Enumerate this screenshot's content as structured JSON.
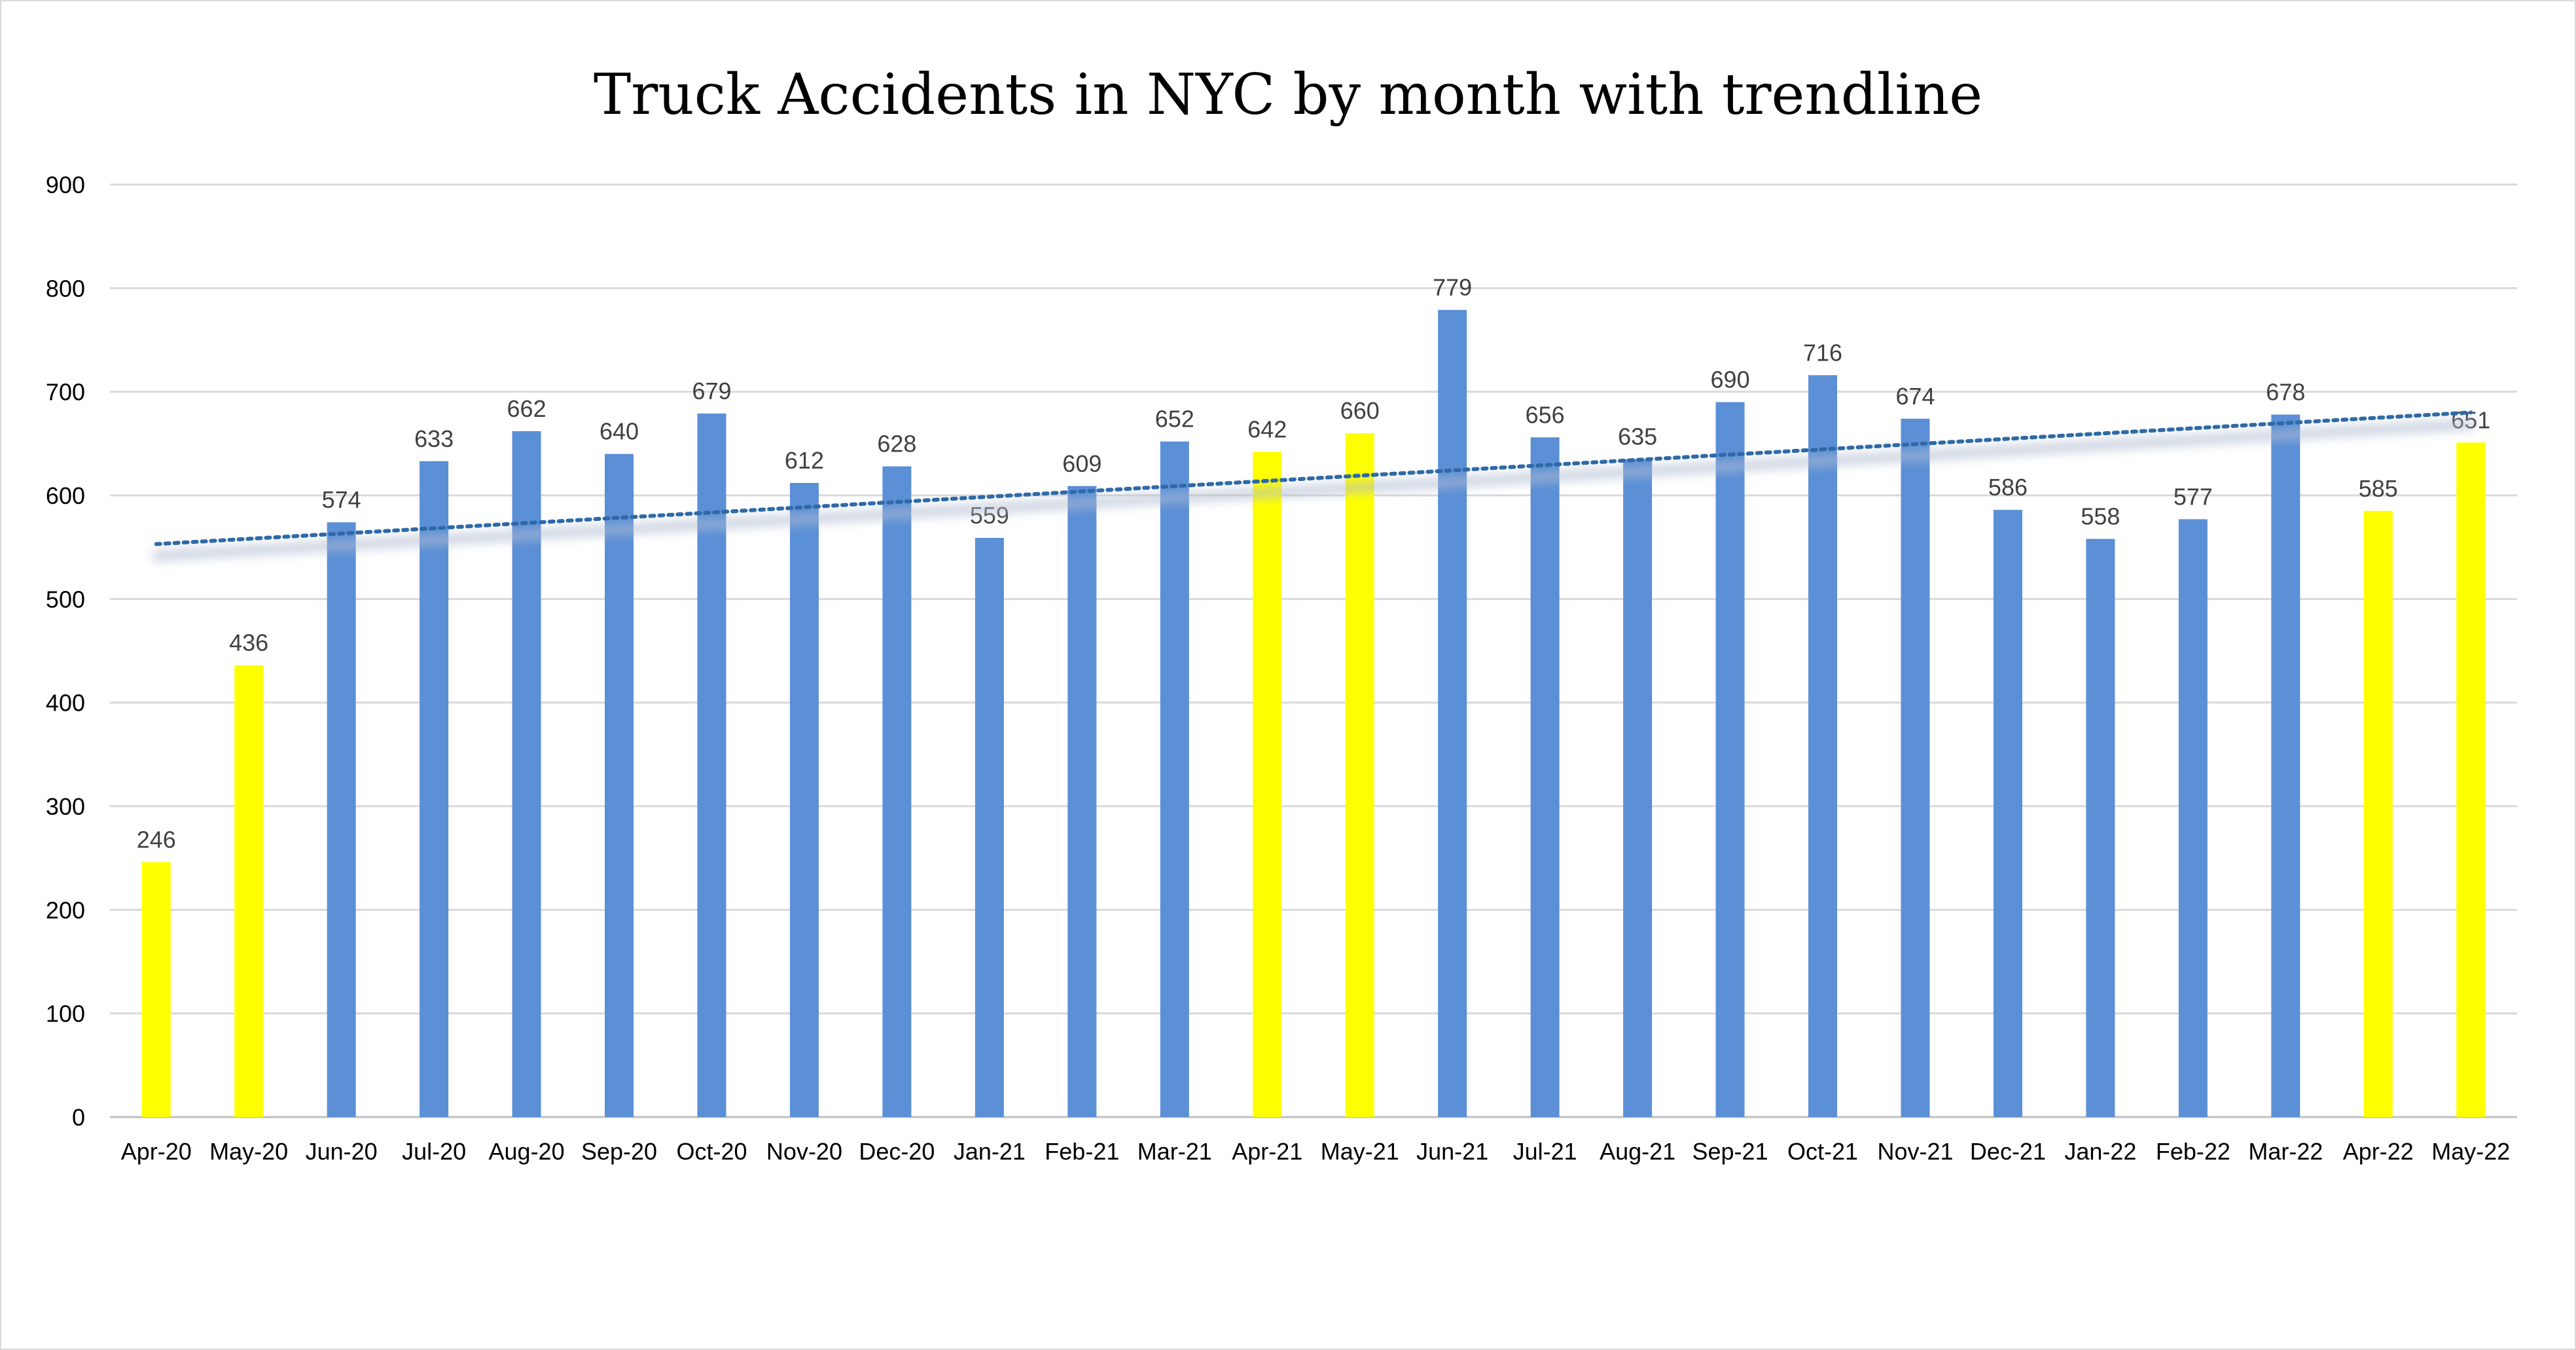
{
  "chart_data": {
    "type": "bar",
    "title": "Truck Accidents in NYC by month with trendline",
    "xlabel": "",
    "ylabel": "",
    "ylim": [
      0,
      900
    ],
    "ytick_step": 100,
    "grid": true,
    "legend": "none",
    "categories": [
      "Apr-20",
      "May-20",
      "Jun-20",
      "Jul-20",
      "Aug-20",
      "Sep-20",
      "Oct-20",
      "Nov-20",
      "Dec-20",
      "Jan-21",
      "Feb-21",
      "Mar-21",
      "Apr-21",
      "May-21",
      "Jun-21",
      "Jul-21",
      "Aug-21",
      "Sep-21",
      "Oct-21",
      "Nov-21",
      "Dec-21",
      "Jan-22",
      "Feb-22",
      "Mar-22",
      "Apr-22",
      "May-22"
    ],
    "values": [
      246,
      436,
      574,
      633,
      662,
      640,
      679,
      612,
      628,
      559,
      609,
      652,
      642,
      660,
      779,
      656,
      635,
      690,
      716,
      674,
      586,
      558,
      577,
      678,
      585,
      651
    ],
    "highlighted": [
      true,
      true,
      false,
      false,
      false,
      false,
      false,
      false,
      false,
      false,
      false,
      false,
      true,
      true,
      false,
      false,
      false,
      false,
      false,
      false,
      false,
      false,
      false,
      false,
      true,
      true
    ],
    "colors": {
      "bar": "#5b8fd6",
      "highlight": "#ffff00",
      "trendline": "#2e6aa8",
      "grid": "#d9d9d9",
      "text": "#404040"
    },
    "trendline": {
      "type": "linear",
      "start_value": 553,
      "end_value": 680
    }
  }
}
